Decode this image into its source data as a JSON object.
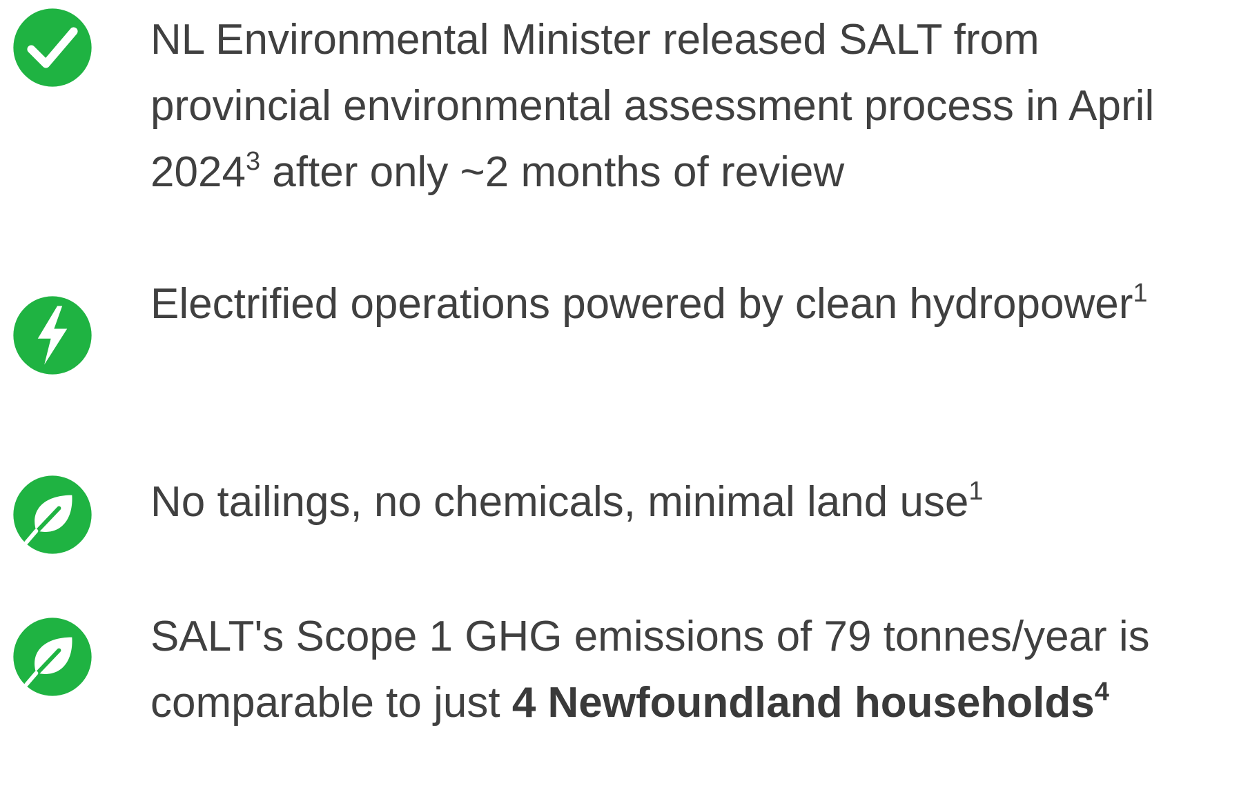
{
  "items": [
    {
      "text": "NL Environmental Minister released SALT from provincial environmental assessment process in April 2024",
      "sup": "3",
      "after": " after only ~2 months of review"
    },
    {
      "text": "Electrified operations powered by clean hydropower",
      "sup": "1"
    },
    {
      "text": "No tailings, no chemicals, minimal land use",
      "sup": "1"
    },
    {
      "text": "SALT's Scope 1 GHG emissions of 79 tonnes/year is comparable to just ",
      "bold": "4 Newfoundland households",
      "sup": "4"
    }
  ]
}
